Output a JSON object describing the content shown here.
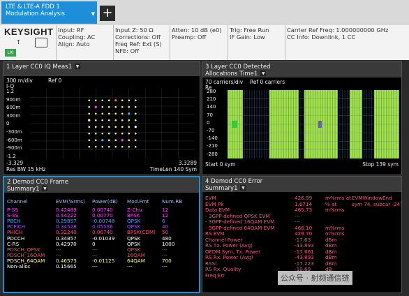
{
  "tab": {
    "line1": "LTE & LTE-A FDD 1",
    "line2": "Modulation Analysis"
  },
  "add_label": "+",
  "brand": {
    "logo": "KEYSIGHT",
    "t": "T",
    "lxi": "LXI"
  },
  "info": {
    "c1": [
      "Input: RF",
      "Coupling: AC",
      "Align: Auto"
    ],
    "c2": [
      "Input Z: 50 Ω",
      "Corrections: Off",
      "Freq Ref: Ext (S)",
      "NFE: Off"
    ],
    "c3": [
      "Atten: 10 dB (e0)",
      "Preamp: Off"
    ],
    "c4": [
      "Trig: Free Run",
      "IF Gain: Low"
    ],
    "c5": [
      "Carrier Ref Freq: 1.000000000 GHz",
      "CC Info: Downlink, 1 CC"
    ]
  },
  "panel1": {
    "title": "1 Layer CC0 IQ Meas1",
    "scale": "300 m/div",
    "ref": "Ref 0",
    "axis": "I-Q",
    "yticks": [
      "1.2",
      "900m",
      "600m",
      "300m",
      "0",
      "-300m",
      "-600m",
      "-900m",
      "-1.2"
    ],
    "xmin": "-3.329",
    "xmax": "3.3289",
    "res_bw": "Res BW 15 kHz",
    "timelen": "TimeLen 140  Sym"
  },
  "panel2": {
    "title1": "3 Layer CC0 Detected",
    "title2": "Allocations Time1",
    "scale": "70  carriers/div",
    "ref": "Ref 0 carriers",
    "axis": "Re",
    "yticks": [
      "280",
      "210",
      "140",
      "70",
      "0",
      "-70",
      "-140",
      "-210",
      "-280"
    ],
    "start": "Start 0  sym",
    "stop": "Stop 139  sym"
  },
  "panel3": {
    "title1": "2 Demod CC0 Frame",
    "title2": "Summary1",
    "headers": [
      "Channel",
      "EVM(%rms)",
      "Power(dB)",
      "Mod.Fmt",
      "Num.RB"
    ],
    "rows": [
      {
        "ch": "P-SS",
        "evm": "0.42489",
        "pwr": "0.00740",
        "mod": "Z-Chu",
        "rb": "12",
        "color": "#ff44ff"
      },
      {
        "ch": "S-SS",
        "evm": "0.44222",
        "pwr": "0.00770",
        "mod": "BPSK",
        "rb": "12",
        "color": "#ff44ff"
      },
      {
        "ch": "PBCH",
        "evm": "0.29857",
        "pwr": "-0.00748",
        "mod": "QPSK",
        "rb": "6",
        "color": "#4aa8ff"
      },
      {
        "ch": "PCFICH",
        "evm": "0.34528",
        "pwr": "0.05536",
        "mod": "QPSK",
        "rb": "40",
        "color": "#b04aff"
      },
      {
        "ch": "PHICH",
        "evm": "0.32240",
        "pwr": "0.06740",
        "mod": "BPSK(CDM)",
        "rb": "50",
        "color": "#ff4d8a"
      },
      {
        "ch": "PDCCH",
        "evm": "0.34857",
        "pwr": "-0.01039",
        "mod": "QPSK",
        "rb": "480",
        "color": "#ffffff"
      },
      {
        "ch": "C-RS",
        "evm": "0.42970",
        "pwr": "0",
        "mod": "QPSK",
        "rb": "1000",
        "color": "#ffffff"
      },
      {
        "ch": "PDSCH_QPSK",
        "evm": "---",
        "pwr": "---",
        "mod": "QPSK",
        "rb": "---",
        "color": "#ff4d4d"
      },
      {
        "ch": "PDSCH_16QAM",
        "evm": "---",
        "pwr": "---",
        "mod": "16QAM",
        "rb": "---",
        "color": "#ff4d4d"
      },
      {
        "ch": "PDSCH_64QAM",
        "evm": "0.46573",
        "pwr": "-0.01125",
        "mod": "64QAM",
        "rb": "700",
        "color": "#ffff66"
      },
      {
        "ch": "Non-alloc",
        "evm": "0.15665",
        "pwr": "---",
        "mod": "---",
        "rb": "---",
        "color": "#ffffff"
      }
    ]
  },
  "panel4": {
    "title1": "4 Demod CC0 Error",
    "title2": "Summary1",
    "rows": [
      {
        "label": "EVM",
        "value": "426.99",
        "unit": "m%rms at",
        "extra": "EVMWindowEnd"
      },
      {
        "label": "EVM Pk",
        "value": "1.6714",
        "unit": "% at",
        "extra": "sym 74,  subcar -247"
      },
      {
        "label": "Data EVM",
        "value": "465.73",
        "unit": "m%rms",
        "extra": ""
      },
      {
        "label": " - 3GPP-defined QPSK EVM",
        "value": "---",
        "unit": "",
        "extra": ""
      },
      {
        "label": " - 3GPP-defined 16QAM EVM",
        "value": "---",
        "unit": "",
        "extra": ""
      },
      {
        "label": " - 3GPP-defined 64QAM EVM",
        "value": "466.10",
        "unit": "m%rms",
        "extra": ""
      },
      {
        "label": "RS EVM",
        "value": "429.70",
        "unit": "m%rms",
        "extra": ""
      },
      {
        "label": "Channel Power",
        "value": "-17.63",
        "unit": "dBm",
        "extra": ""
      },
      {
        "label": "RS Tx. Power (Avg)",
        "value": "-43.893",
        "unit": "dBm",
        "extra": ""
      },
      {
        "label": "OFDM Sym. Tx. Power",
        "value": "-17.661",
        "unit": "dBm",
        "extra": ""
      },
      {
        "label": "RS Rx. Power (Avg)",
        "value": "-43.893",
        "unit": "dBm",
        "extra": ""
      },
      {
        "label": "RSSI",
        "value": "-17.223",
        "unit": "dBm",
        "extra": ""
      },
      {
        "label": "RS Rx. Quality",
        "value": "-10.69",
        "unit": "dB",
        "extra": ""
      },
      {
        "label": "Freq Err",
        "value": "",
        "unit": "",
        "extra": ""
      }
    ]
  },
  "watermark": "公众号 · 射频通信链",
  "colors": {
    "accent": "#1d8fd8",
    "allocation": "#a6e23a",
    "error_text": "#ff4d8a"
  }
}
